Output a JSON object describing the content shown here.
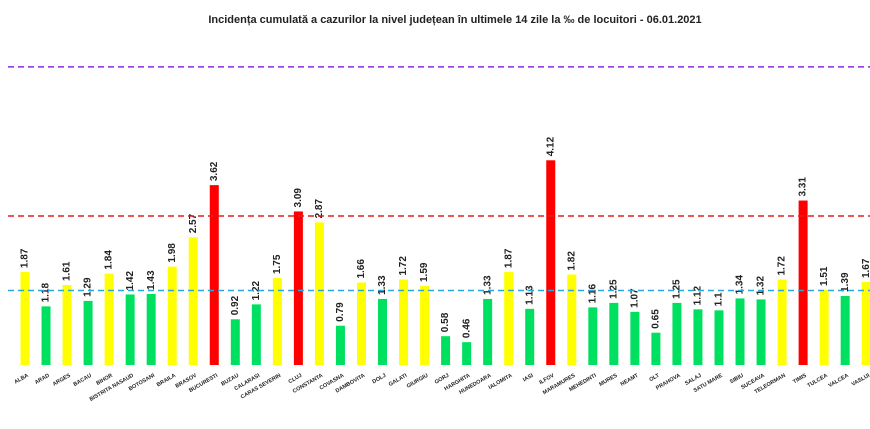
{
  "chart_data": {
    "type": "bar",
    "title": "Incidența cumulată a cazurilor la nivel județean în ultimele 14 zile la ‰ de locuitori - 06.01.2021",
    "categories": [
      "ALBA",
      "ARAD",
      "ARGES",
      "BACAU",
      "BIHOR",
      "BISTRITA NASAUD",
      "BOTOSANI",
      "BRAILA",
      "BRASOV",
      "BUCURESTI",
      "BUZAU",
      "CALARASI",
      "CARAS SEVERIN",
      "CLUJ",
      "CONSTANTA",
      "COVASNA",
      "DAMBOVITA",
      "DOLJ",
      "GALATI",
      "GIURGIU",
      "GORJ",
      "HARGHITA",
      "HUNEDOARA",
      "IALOMITA",
      "IASI",
      "ILFOV",
      "MARAMURES",
      "MEHEDINTI",
      "MURES",
      "NEAMT",
      "OLT",
      "PRAHOVA",
      "SALAJ",
      "SATU MARE",
      "SIBIU",
      "SUCEAVA",
      "TELEORMAN",
      "TIMIS",
      "TULCEA",
      "VALCEA",
      "VASLUI"
    ],
    "values": [
      1.87,
      1.18,
      1.61,
      1.29,
      1.84,
      1.42,
      1.43,
      1.98,
      2.57,
      3.62,
      0.92,
      1.22,
      1.75,
      3.09,
      2.87,
      0.79,
      1.66,
      1.33,
      1.72,
      1.59,
      0.58,
      0.46,
      1.33,
      1.87,
      1.13,
      4.12,
      1.82,
      1.16,
      1.25,
      1.07,
      0.65,
      1.25,
      1.12,
      1.1,
      1.34,
      1.32,
      1.72,
      3.31,
      1.51,
      1.39,
      1.67
    ],
    "colors": [
      "#ffff00",
      "#00e060",
      "#ffff00",
      "#00e060",
      "#ffff00",
      "#00e060",
      "#00e060",
      "#ffff00",
      "#ffff00",
      "#ff0000",
      "#00e060",
      "#00e060",
      "#ffff00",
      "#ff0000",
      "#ffff00",
      "#00e060",
      "#ffff00",
      "#00e060",
      "#ffff00",
      "#ffff00",
      "#00e060",
      "#00e060",
      "#00e060",
      "#ffff00",
      "#00e060",
      "#ff0000",
      "#ffff00",
      "#00e060",
      "#00e060",
      "#00e060",
      "#00e060",
      "#00e060",
      "#00e060",
      "#00e060",
      "#00e060",
      "#00e060",
      "#ffff00",
      "#ff0000",
      "#ffff00",
      "#00e060",
      "#ffff00"
    ],
    "reference_lines": [
      {
        "value": 1.5,
        "color": "#29a8e0"
      },
      {
        "value": 3,
        "color": "#e02020"
      },
      {
        "value": 6,
        "color": "#8a2be2"
      }
    ],
    "ylim": [
      0,
      6.4
    ]
  }
}
